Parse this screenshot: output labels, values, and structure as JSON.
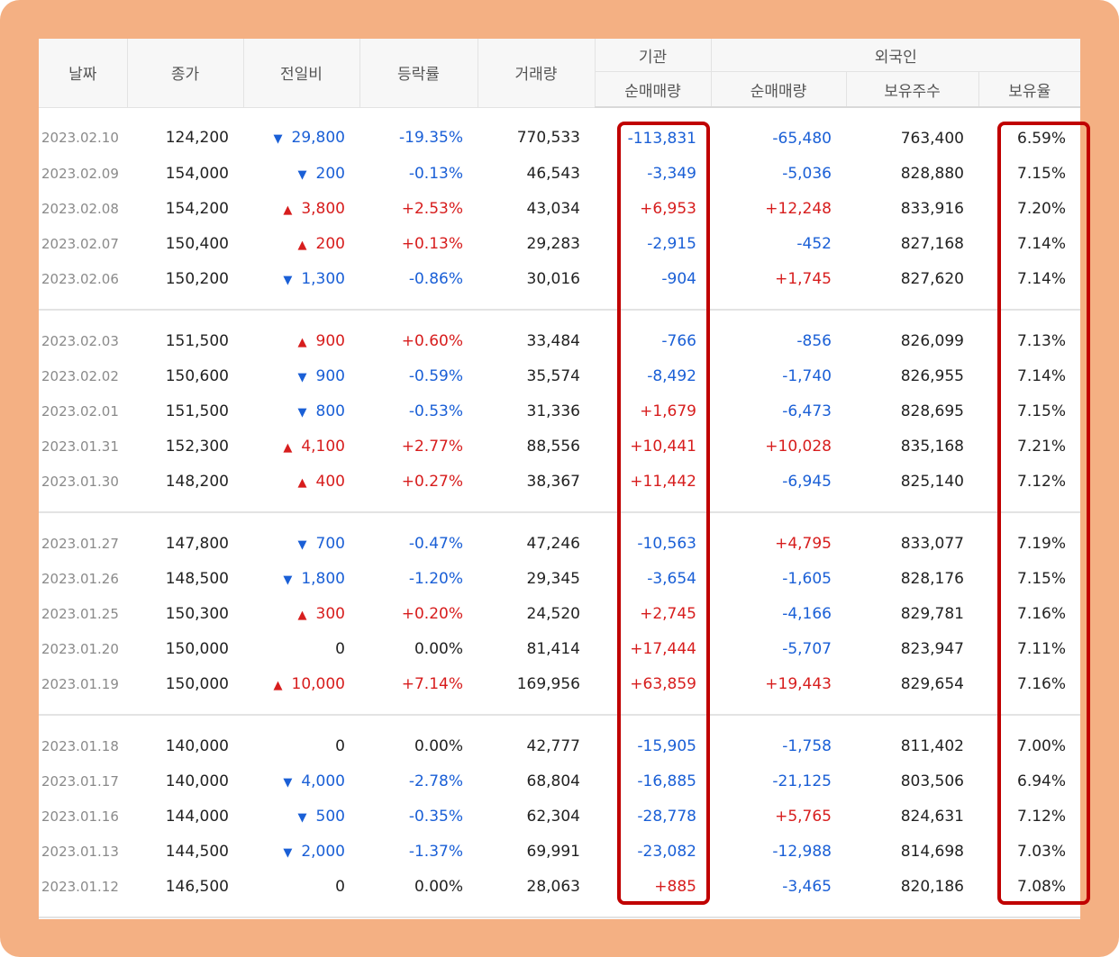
{
  "headers": {
    "date": "날짜",
    "close": "종가",
    "change": "전일비",
    "rate": "등락률",
    "volume": "거래량",
    "institution": "기관",
    "foreign": "외국인",
    "inst_net": "순매매량",
    "foreign_net": "순매매량",
    "foreign_hold": "보유주수",
    "foreign_ratio": "보유율"
  },
  "colors": {
    "up": "#d71d1d",
    "down": "#1a5fd6",
    "frame": "#f4b083",
    "highlight": "#c00000"
  },
  "groups": [
    [
      {
        "date": "2023.02.10",
        "close": "124,200",
        "dir": "down",
        "change": "29,800",
        "rate": "-19.35%",
        "volume": "770,533",
        "inst": "-113,831",
        "fnet": "-65,480",
        "fhold": "763,400",
        "fratio": "6.59%"
      },
      {
        "date": "2023.02.09",
        "close": "154,000",
        "dir": "down",
        "change": "200",
        "rate": "-0.13%",
        "volume": "46,543",
        "inst": "-3,349",
        "fnet": "-5,036",
        "fhold": "828,880",
        "fratio": "7.15%"
      },
      {
        "date": "2023.02.08",
        "close": "154,200",
        "dir": "up",
        "change": "3,800",
        "rate": "+2.53%",
        "volume": "43,034",
        "inst": "+6,953",
        "fnet": "+12,248",
        "fhold": "833,916",
        "fratio": "7.20%"
      },
      {
        "date": "2023.02.07",
        "close": "150,400",
        "dir": "up",
        "change": "200",
        "rate": "+0.13%",
        "volume": "29,283",
        "inst": "-2,915",
        "fnet": "-452",
        "fhold": "827,168",
        "fratio": "7.14%"
      },
      {
        "date": "2023.02.06",
        "close": "150,200",
        "dir": "down",
        "change": "1,300",
        "rate": "-0.86%",
        "volume": "30,016",
        "inst": "-904",
        "fnet": "+1,745",
        "fhold": "827,620",
        "fratio": "7.14%"
      }
    ],
    [
      {
        "date": "2023.02.03",
        "close": "151,500",
        "dir": "up",
        "change": "900",
        "rate": "+0.60%",
        "volume": "33,484",
        "inst": "-766",
        "fnet": "-856",
        "fhold": "826,099",
        "fratio": "7.13%"
      },
      {
        "date": "2023.02.02",
        "close": "150,600",
        "dir": "down",
        "change": "900",
        "rate": "-0.59%",
        "volume": "35,574",
        "inst": "-8,492",
        "fnet": "-1,740",
        "fhold": "826,955",
        "fratio": "7.14%"
      },
      {
        "date": "2023.02.01",
        "close": "151,500",
        "dir": "down",
        "change": "800",
        "rate": "-0.53%",
        "volume": "31,336",
        "inst": "+1,679",
        "fnet": "-6,473",
        "fhold": "828,695",
        "fratio": "7.15%"
      },
      {
        "date": "2023.01.31",
        "close": "152,300",
        "dir": "up",
        "change": "4,100",
        "rate": "+2.77%",
        "volume": "88,556",
        "inst": "+10,441",
        "fnet": "+10,028",
        "fhold": "835,168",
        "fratio": "7.21%"
      },
      {
        "date": "2023.01.30",
        "close": "148,200",
        "dir": "up",
        "change": "400",
        "rate": "+0.27%",
        "volume": "38,367",
        "inst": "+11,442",
        "fnet": "-6,945",
        "fhold": "825,140",
        "fratio": "7.12%"
      }
    ],
    [
      {
        "date": "2023.01.27",
        "close": "147,800",
        "dir": "down",
        "change": "700",
        "rate": "-0.47%",
        "volume": "47,246",
        "inst": "-10,563",
        "fnet": "+4,795",
        "fhold": "833,077",
        "fratio": "7.19%"
      },
      {
        "date": "2023.01.26",
        "close": "148,500",
        "dir": "down",
        "change": "1,800",
        "rate": "-1.20%",
        "volume": "29,345",
        "inst": "-3,654",
        "fnet": "-1,605",
        "fhold": "828,176",
        "fratio": "7.15%"
      },
      {
        "date": "2023.01.25",
        "close": "150,300",
        "dir": "up",
        "change": "300",
        "rate": "+0.20%",
        "volume": "24,520",
        "inst": "+2,745",
        "fnet": "-4,166",
        "fhold": "829,781",
        "fratio": "7.16%"
      },
      {
        "date": "2023.01.20",
        "close": "150,000",
        "dir": "none",
        "change": "0",
        "rate": "0.00%",
        "volume": "81,414",
        "inst": "+17,444",
        "fnet": "-5,707",
        "fhold": "823,947",
        "fratio": "7.11%"
      },
      {
        "date": "2023.01.19",
        "close": "150,000",
        "dir": "up",
        "change": "10,000",
        "rate": "+7.14%",
        "volume": "169,956",
        "inst": "+63,859",
        "fnet": "+19,443",
        "fhold": "829,654",
        "fratio": "7.16%"
      }
    ],
    [
      {
        "date": "2023.01.18",
        "close": "140,000",
        "dir": "none",
        "change": "0",
        "rate": "0.00%",
        "volume": "42,777",
        "inst": "-15,905",
        "fnet": "-1,758",
        "fhold": "811,402",
        "fratio": "7.00%"
      },
      {
        "date": "2023.01.17",
        "close": "140,000",
        "dir": "down",
        "change": "4,000",
        "rate": "-2.78%",
        "volume": "68,804",
        "inst": "-16,885",
        "fnet": "-21,125",
        "fhold": "803,506",
        "fratio": "6.94%"
      },
      {
        "date": "2023.01.16",
        "close": "144,000",
        "dir": "down",
        "change": "500",
        "rate": "-0.35%",
        "volume": "62,304",
        "inst": "-28,778",
        "fnet": "+5,765",
        "fhold": "824,631",
        "fratio": "7.12%"
      },
      {
        "date": "2023.01.13",
        "close": "144,500",
        "dir": "down",
        "change": "2,000",
        "rate": "-1.37%",
        "volume": "69,991",
        "inst": "-23,082",
        "fnet": "-12,988",
        "fhold": "814,698",
        "fratio": "7.03%"
      },
      {
        "date": "2023.01.12",
        "close": "146,500",
        "dir": "none",
        "change": "0",
        "rate": "0.00%",
        "volume": "28,063",
        "inst": "+885",
        "fnet": "-3,465",
        "fhold": "820,186",
        "fratio": "7.08%"
      }
    ]
  ]
}
